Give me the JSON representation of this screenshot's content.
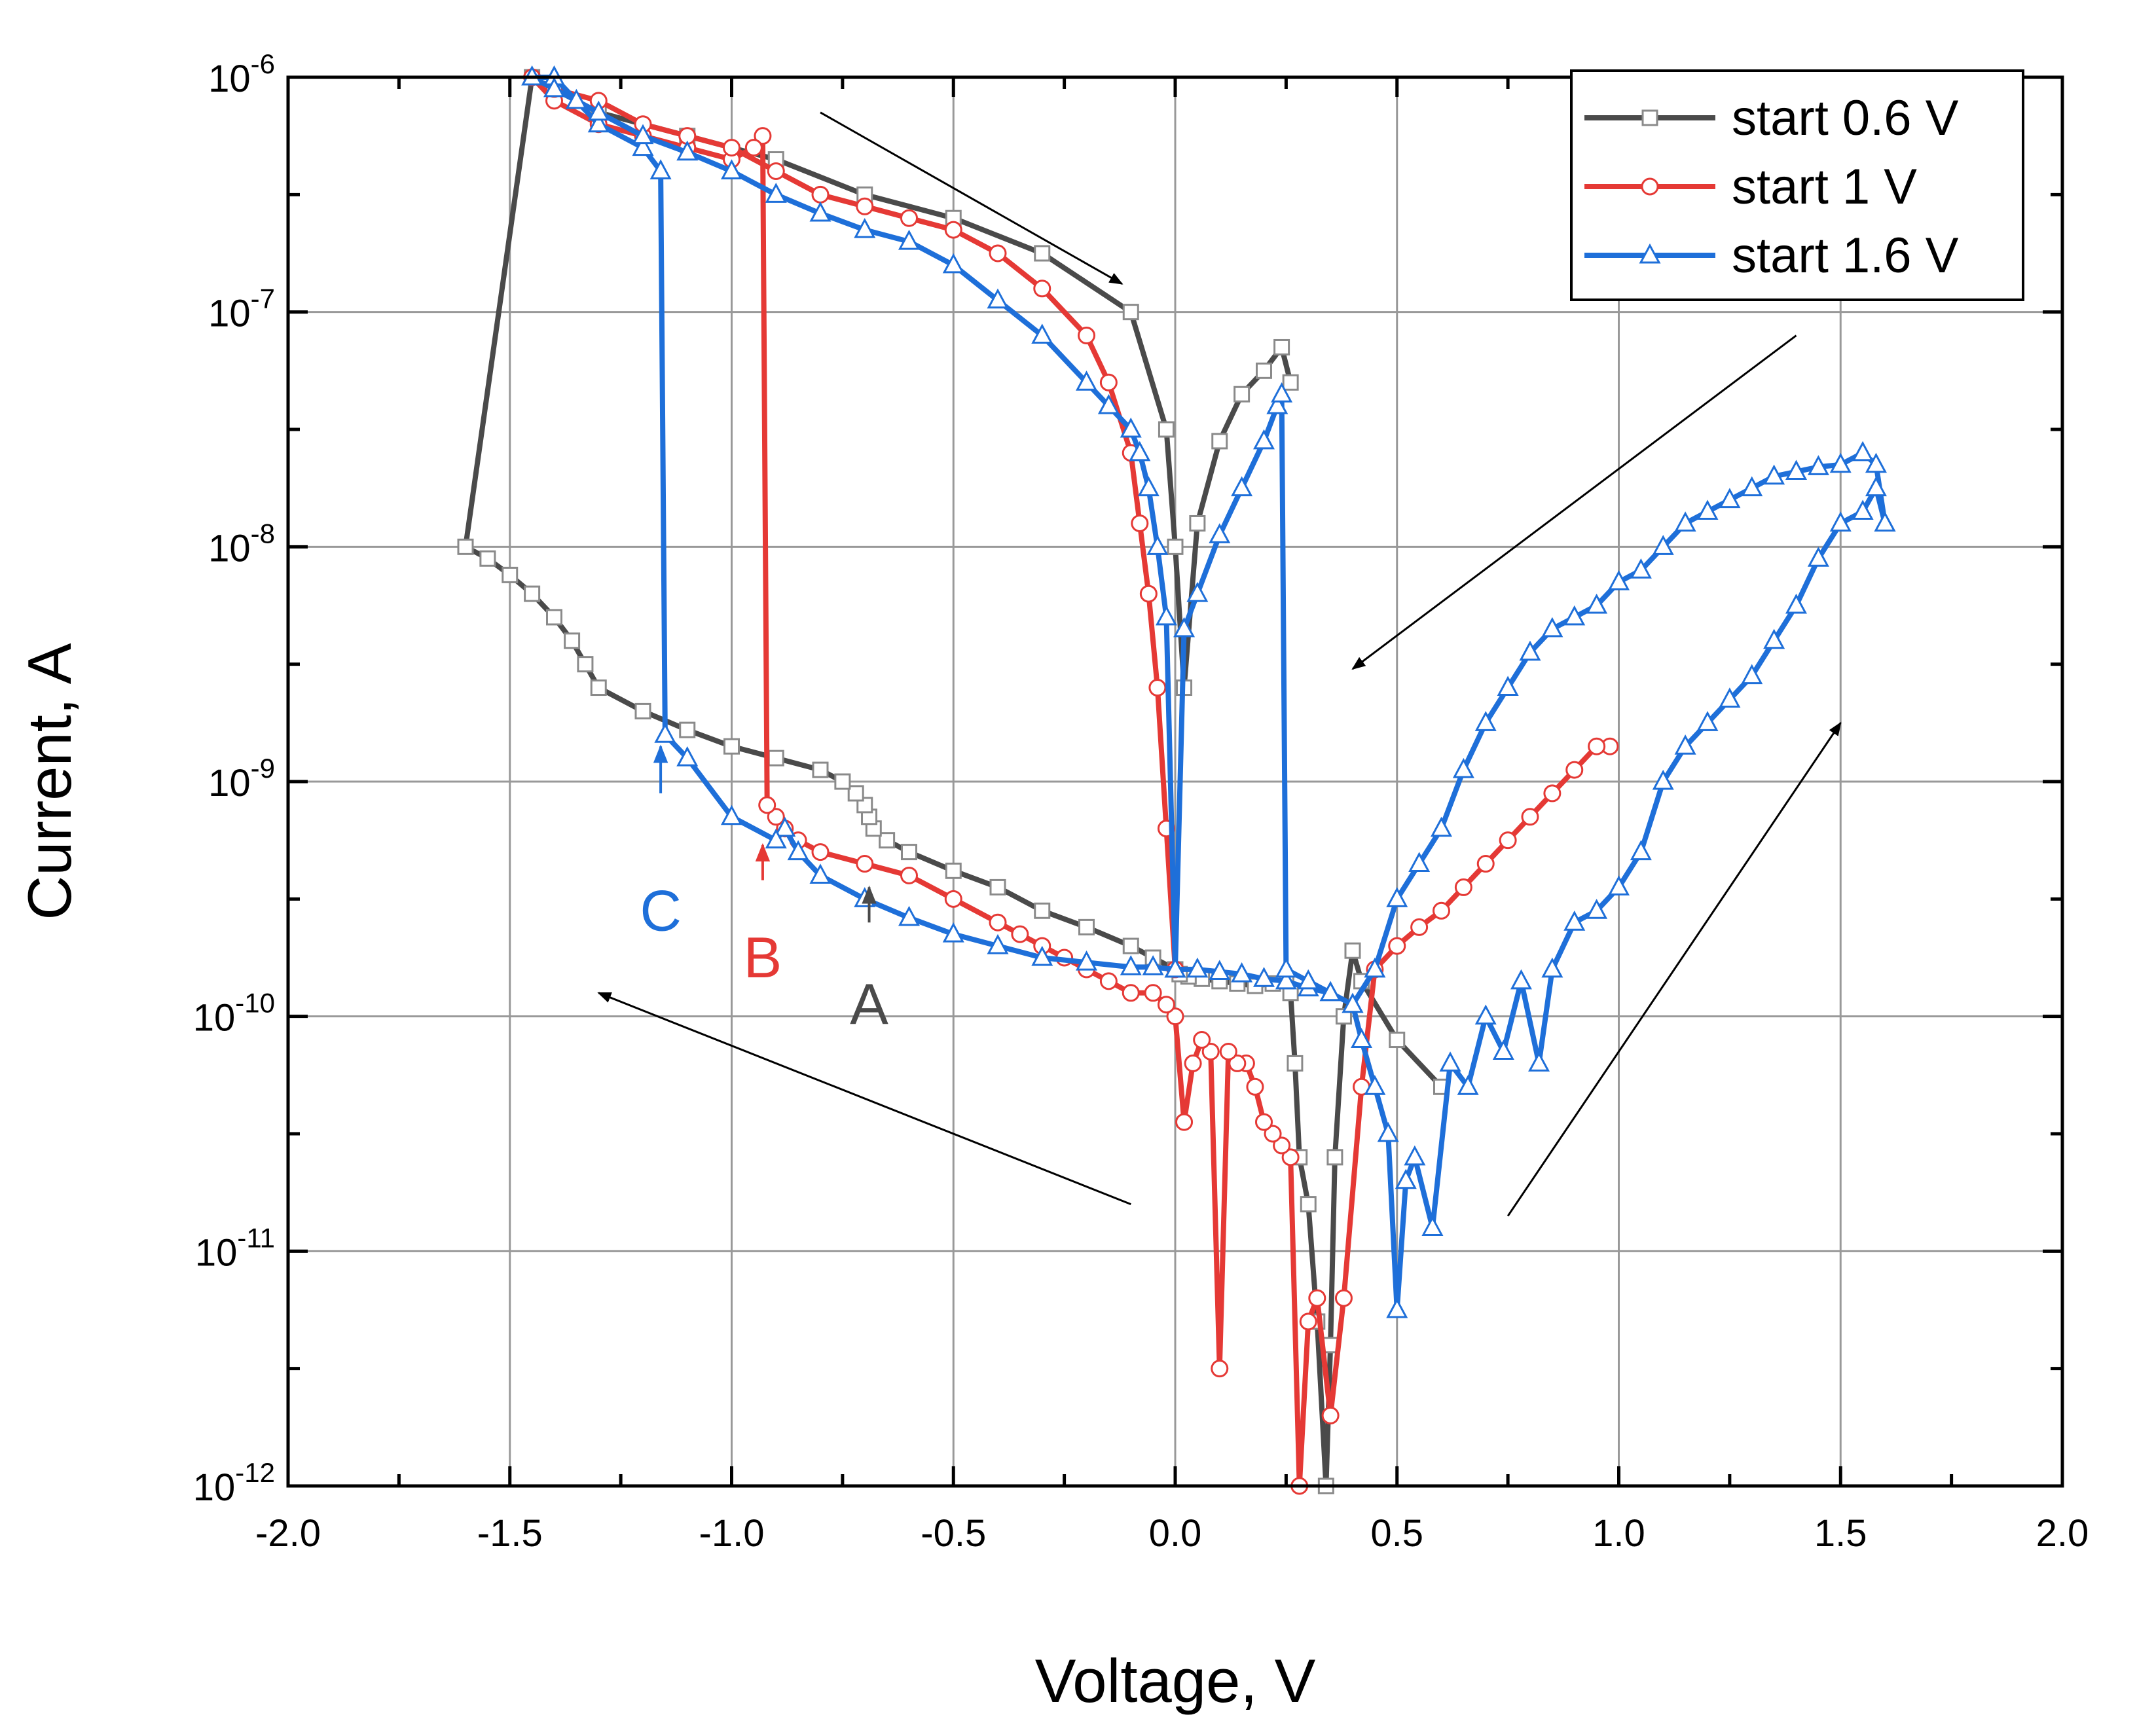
{
  "chart_data": {
    "type": "line",
    "title": "",
    "xlabel": "Voltage, V",
    "ylabel": "Current, A",
    "xlim": [
      -2.0,
      2.0
    ],
    "ylim_log10": [
      -12,
      -6
    ],
    "yscale": "log",
    "grid": true,
    "legend_position": "top-right",
    "x_ticks": [
      "-2.0",
      "-1.5",
      "-1.0",
      "-0.5",
      "0.0",
      "0.5",
      "1.0",
      "1.5",
      "2.0"
    ],
    "x_tick_values": [
      -2.0,
      -1.5,
      -1.0,
      -0.5,
      0.0,
      0.5,
      1.0,
      1.5,
      2.0
    ],
    "y_ticks": [
      {
        "base": "10",
        "exp": "-12",
        "value": -12
      },
      {
        "base": "10",
        "exp": "-11",
        "value": -11
      },
      {
        "base": "10",
        "exp": "-10",
        "value": -10
      },
      {
        "base": "10",
        "exp": "-9",
        "value": -9
      },
      {
        "base": "10",
        "exp": "-8",
        "value": -8
      },
      {
        "base": "10",
        "exp": "-7",
        "value": -7
      },
      {
        "base": "10",
        "exp": "-6",
        "value": -6
      }
    ],
    "series": [
      {
        "name": "start 0.6 V",
        "color": "#4a4a4a",
        "marker": "square",
        "x": [
          0.6,
          0.5,
          0.42,
          0.4,
          0.38,
          0.36,
          0.35,
          0.34,
          0.32,
          0.3,
          0.28,
          0.27,
          0.26,
          0.25,
          0.22,
          0.18,
          0.14,
          0.1,
          0.06,
          0.03,
          0.01,
          0.0,
          -0.05,
          -0.1,
          -0.2,
          -0.3,
          -0.4,
          -0.5,
          -0.6,
          -0.65,
          -0.68,
          -0.69,
          -0.7,
          -0.72,
          -0.75,
          -0.8,
          -0.9,
          -1.0,
          -1.1,
          -1.2,
          -1.3,
          -1.33,
          -1.36,
          -1.4,
          -1.45,
          -1.5,
          -1.55,
          -1.6,
          -1.45,
          -1.3,
          -1.1,
          -0.9,
          -0.7,
          -0.5,
          -0.3,
          -0.1,
          -0.02,
          0.0,
          0.02,
          0.05,
          0.1,
          0.15,
          0.2,
          0.24,
          0.26
        ],
        "logy": [
          -10.3,
          -10.1,
          -9.85,
          -9.72,
          -10.0,
          -10.6,
          -11.4,
          -12.0,
          -11.3,
          -10.8,
          -10.6,
          -10.2,
          -9.9,
          -9.85,
          -9.86,
          -9.87,
          -9.86,
          -9.85,
          -9.84,
          -9.83,
          -9.82,
          -9.8,
          -9.75,
          -9.7,
          -9.62,
          -9.55,
          -9.45,
          -9.38,
          -9.3,
          -9.25,
          -9.2,
          -9.15,
          -9.1,
          -9.05,
          -9.0,
          -8.95,
          -8.9,
          -8.85,
          -8.78,
          -8.7,
          -8.6,
          -8.5,
          -8.4,
          -8.3,
          -8.2,
          -8.12,
          -8.05,
          -8.0,
          -6.0,
          -6.15,
          -6.25,
          -6.35,
          -6.5,
          -6.6,
          -6.75,
          -7.0,
          -7.5,
          -8.0,
          -8.6,
          -7.9,
          -7.55,
          -7.35,
          -7.25,
          -7.15,
          -7.3
        ]
      },
      {
        "name": "start 1 V",
        "color": "#e53935",
        "marker": "circle",
        "x": [
          0.98,
          0.95,
          0.9,
          0.85,
          0.8,
          0.75,
          0.7,
          0.65,
          0.6,
          0.55,
          0.5,
          0.45,
          0.42,
          0.38,
          0.35,
          0.32,
          0.3,
          0.28,
          0.26,
          0.24,
          0.22,
          0.2,
          0.18,
          0.16,
          0.14,
          0.12,
          0.1,
          0.08,
          0.06,
          0.04,
          0.02,
          0.0,
          -0.02,
          -0.05,
          -0.1,
          -0.15,
          -0.2,
          -0.25,
          -0.3,
          -0.35,
          -0.4,
          -0.5,
          -0.6,
          -0.7,
          -0.8,
          -0.85,
          -0.88,
          -0.9,
          -0.92,
          -0.93,
          -0.95,
          -1.0,
          -1.1,
          -1.2,
          -1.3,
          -1.4,
          -1.45,
          -1.4,
          -1.3,
          -1.2,
          -1.1,
          -1.0,
          -0.9,
          -0.8,
          -0.7,
          -0.6,
          -0.5,
          -0.4,
          -0.3,
          -0.2,
          -0.15,
          -0.1,
          -0.08,
          -0.06,
          -0.04,
          -0.02,
          0.0
        ],
        "logy": [
          -8.85,
          -8.85,
          -8.95,
          -9.05,
          -9.15,
          -9.25,
          -9.35,
          -9.45,
          -9.55,
          -9.62,
          -9.7,
          -9.8,
          -10.3,
          -11.2,
          -11.7,
          -11.2,
          -11.3,
          -12.0,
          -10.6,
          -10.55,
          -10.5,
          -10.45,
          -10.3,
          -10.2,
          -10.2,
          -10.15,
          -11.5,
          -10.15,
          -10.1,
          -10.2,
          -10.45,
          -10.0,
          -9.95,
          -9.9,
          -9.9,
          -9.85,
          -9.8,
          -9.75,
          -9.7,
          -9.65,
          -9.6,
          -9.5,
          -9.4,
          -9.35,
          -9.3,
          -9.25,
          -9.2,
          -9.15,
          -9.1,
          -6.25,
          -6.3,
          -6.35,
          -6.3,
          -6.25,
          -6.2,
          -6.1,
          -6.0,
          -6.05,
          -6.1,
          -6.2,
          -6.25,
          -6.3,
          -6.4,
          -6.5,
          -6.55,
          -6.6,
          -6.65,
          -6.75,
          -6.9,
          -7.1,
          -7.3,
          -7.6,
          -7.9,
          -8.2,
          -8.6,
          -9.2,
          -9.8
        ]
      },
      {
        "name": "start 1.6 V",
        "color": "#1e6fd9",
        "marker": "triangle",
        "x": [
          1.6,
          1.58,
          1.55,
          1.5,
          1.45,
          1.4,
          1.35,
          1.3,
          1.25,
          1.2,
          1.15,
          1.1,
          1.05,
          1.0,
          0.95,
          0.9,
          0.85,
          0.82,
          0.78,
          0.74,
          0.7,
          0.66,
          0.62,
          0.58,
          0.54,
          0.52,
          0.5,
          0.48,
          0.45,
          0.42,
          0.4,
          0.35,
          0.3,
          0.25,
          0.2,
          0.15,
          0.1,
          0.05,
          0.0,
          -0.05,
          -0.1,
          -0.2,
          -0.3,
          -0.4,
          -0.5,
          -0.6,
          -0.7,
          -0.8,
          -0.85,
          -0.88,
          -0.9,
          -1.0,
          -1.1,
          -1.15,
          -1.16,
          -1.2,
          -1.3,
          -1.35,
          -1.4,
          -1.45,
          -1.4,
          -1.3,
          -1.2,
          -1.1,
          -1.0,
          -0.9,
          -0.8,
          -0.7,
          -0.6,
          -0.5,
          -0.4,
          -0.3,
          -0.2,
          -0.15,
          -0.1,
          -0.08,
          -0.06,
          -0.04,
          -0.02,
          0.0,
          0.02,
          0.05,
          0.1,
          0.15,
          0.2,
          0.23,
          0.24,
          0.25,
          0.3,
          0.35,
          0.4,
          0.45,
          0.5,
          0.55,
          0.6,
          0.65,
          0.7,
          0.75,
          0.8,
          0.85,
          0.9,
          0.95,
          1.0,
          1.05,
          1.1,
          1.15,
          1.2,
          1.25,
          1.3,
          1.35,
          1.4,
          1.45,
          1.5,
          1.55,
          1.58,
          1.6
        ],
        "logy": [
          -7.9,
          -7.75,
          -7.85,
          -7.9,
          -8.05,
          -8.25,
          -8.4,
          -8.55,
          -8.65,
          -8.75,
          -8.85,
          -9.0,
          -9.3,
          -9.45,
          -9.55,
          -9.6,
          -9.8,
          -10.2,
          -9.85,
          -10.15,
          -10.0,
          -10.3,
          -10.2,
          -10.9,
          -10.6,
          -10.7,
          -11.25,
          -10.5,
          -10.3,
          -10.1,
          -9.95,
          -9.9,
          -9.88,
          -9.85,
          -9.84,
          -9.82,
          -9.81,
          -9.8,
          -9.8,
          -9.79,
          -9.79,
          -9.77,
          -9.75,
          -9.7,
          -9.65,
          -9.58,
          -9.5,
          -9.4,
          -9.3,
          -9.2,
          -9.25,
          -9.15,
          -8.9,
          -8.8,
          -6.4,
          -6.3,
          -6.2,
          -6.1,
          -6.0,
          -6.0,
          -6.05,
          -6.15,
          -6.25,
          -6.32,
          -6.4,
          -6.5,
          -6.58,
          -6.65,
          -6.7,
          -6.8,
          -6.95,
          -7.1,
          -7.3,
          -7.4,
          -7.5,
          -7.6,
          -7.75,
          -8.0,
          -8.3,
          -9.8,
          -8.35,
          -8.2,
          -7.95,
          -7.75,
          -7.55,
          -7.4,
          -7.35,
          -9.8,
          -9.85,
          -9.9,
          -9.95,
          -9.8,
          -9.5,
          -9.35,
          -9.2,
          -8.95,
          -8.75,
          -8.6,
          -8.45,
          -8.35,
          -8.3,
          -8.25,
          -8.15,
          -8.1,
          -8.0,
          -7.9,
          -7.85,
          -7.8,
          -7.75,
          -7.7,
          -7.68,
          -7.66,
          -7.65,
          -7.6,
          -7.65,
          -7.9
        ]
      }
    ],
    "annotations": [
      {
        "label": "A",
        "color": "#4a4a4a",
        "x": -0.69,
        "arrow_tip_logy": -9.45,
        "arrow_tail_logy": -9.6,
        "text_logy": -9.95
      },
      {
        "label": "B",
        "color": "#e53935",
        "x": -0.93,
        "arrow_tip_logy": -9.27,
        "arrow_tail_logy": -9.42,
        "text_logy": -9.75
      },
      {
        "label": "C",
        "color": "#1e6fd9",
        "x": -1.16,
        "arrow_tip_logy": -8.85,
        "arrow_tail_logy": -9.05,
        "text_logy": -9.55
      }
    ],
    "direction_arrows": [
      {
        "from": [
          -0.8,
          -6.15
        ],
        "to": [
          -0.12,
          -6.88
        ]
      },
      {
        "from": [
          1.4,
          -7.1
        ],
        "to": [
          0.4,
          -8.52
        ]
      },
      {
        "from": [
          -0.1,
          -10.8
        ],
        "to": [
          -1.3,
          -9.9
        ]
      },
      {
        "from": [
          0.75,
          -10.85
        ],
        "to": [
          1.5,
          -8.75
        ]
      }
    ]
  }
}
